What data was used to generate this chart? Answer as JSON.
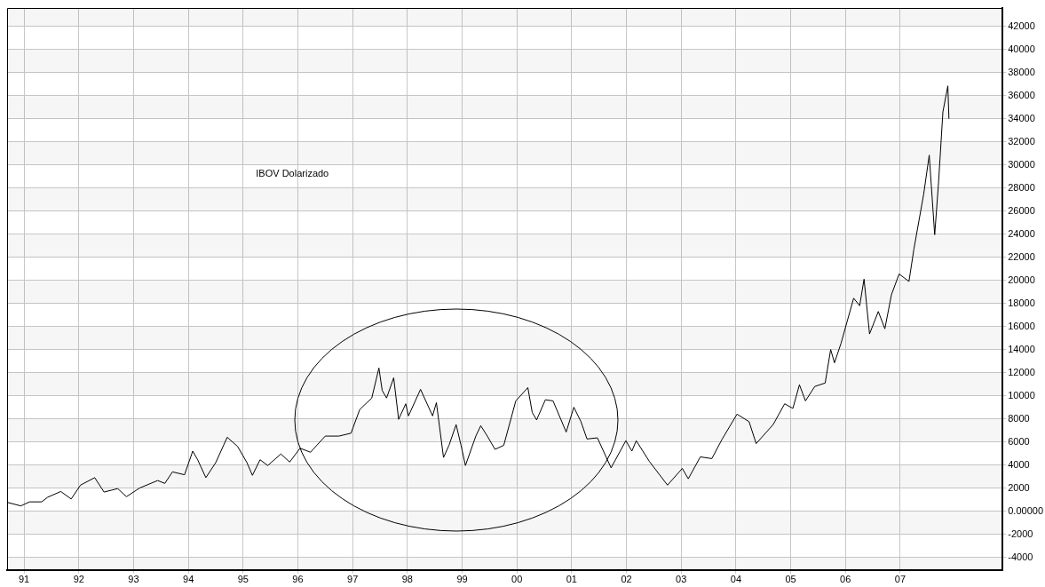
{
  "chart_data": {
    "type": "line",
    "title": "IBOV Dolarizado",
    "xlim": [
      1990.69,
      2008.87
    ],
    "xticks": [
      {
        "value": 1991,
        "label": "91"
      },
      {
        "value": 1992,
        "label": "92"
      },
      {
        "value": 1993,
        "label": "93"
      },
      {
        "value": 1994,
        "label": "94"
      },
      {
        "value": 1995,
        "label": "95"
      },
      {
        "value": 1996,
        "label": "96"
      },
      {
        "value": 1997,
        "label": "97"
      },
      {
        "value": 1998,
        "label": "98"
      },
      {
        "value": 1999,
        "label": "99"
      },
      {
        "value": 2000,
        "label": "00"
      },
      {
        "value": 2001,
        "label": "01"
      },
      {
        "value": 2002,
        "label": "02"
      },
      {
        "value": 2003,
        "label": "03"
      },
      {
        "value": 2004,
        "label": "04"
      },
      {
        "value": 2005,
        "label": "05"
      },
      {
        "value": 2006,
        "label": "06"
      },
      {
        "value": 2007,
        "label": "07"
      }
    ],
    "ylim": [
      -5100,
      43600
    ],
    "yticks": [
      -4000,
      -2000,
      {
        "value": 0,
        "label": "0.00000"
      },
      2000,
      4000,
      6000,
      8000,
      10000,
      12000,
      14000,
      16000,
      18000,
      20000,
      22000,
      24000,
      26000,
      28000,
      30000,
      32000,
      34000,
      36000,
      38000,
      40000,
      42000
    ],
    "grid": true,
    "legend": false,
    "marker": "none",
    "line_style": "solid",
    "series": [
      {
        "color": "#000000",
        "x": [
          1990.7,
          1990.94,
          1991.1,
          1991.32,
          1991.43,
          1991.67,
          1991.86,
          1992.03,
          1992.29,
          1992.46,
          1992.71,
          1992.87,
          1993.11,
          1993.44,
          1993.57,
          1993.71,
          1993.93,
          1994.08,
          1994.17,
          1994.32,
          1994.5,
          1994.71,
          1994.9,
          1995.07,
          1995.17,
          1995.31,
          1995.45,
          1995.69,
          1995.85,
          1996.04,
          1996.23,
          1996.5,
          1996.75,
          1996.97,
          1997.13,
          1997.35,
          1997.48,
          1997.54,
          1997.62,
          1997.75,
          1997.84,
          1997.97,
          1998.02,
          1998.24,
          1998.46,
          1998.53,
          1998.66,
          1998.76,
          1998.89,
          1998.98,
          1999.06,
          1999.25,
          1999.34,
          1999.46,
          1999.6,
          1999.76,
          1999.98,
          2000.2,
          2000.28,
          2000.36,
          2000.52,
          2000.66,
          2000.9,
          2001.04,
          2001.17,
          2001.28,
          2001.47,
          2001.72,
          2001.99,
          2002.1,
          2002.18,
          2002.42,
          2002.75,
          2003.02,
          2003.13,
          2003.35,
          2003.56,
          2003.75,
          2004.02,
          2004.24,
          2004.37,
          2004.68,
          2004.89,
          2005.04,
          2005.16,
          2005.27,
          2005.44,
          2005.63,
          2005.73,
          2005.8,
          2005.92,
          2006.15,
          2006.26,
          2006.34,
          2006.44,
          2006.6,
          2006.72,
          2006.84,
          2006.98,
          2007.16,
          2007.25,
          2007.43,
          2007.53,
          2007.63,
          2007.7,
          2007.78,
          2007.87,
          2007.89
        ],
        "values": [
          750,
          450,
          800,
          800,
          1200,
          1700,
          1050,
          2250,
          2900,
          1650,
          1950,
          1250,
          2000,
          2650,
          2400,
          3400,
          3150,
          5200,
          4450,
          2900,
          4200,
          6400,
          5600,
          4200,
          3100,
          4450,
          3950,
          4950,
          4250,
          5450,
          5100,
          6500,
          6500,
          6750,
          8800,
          9800,
          12400,
          10450,
          9800,
          11550,
          7950,
          9300,
          8250,
          10550,
          8250,
          9400,
          4650,
          5700,
          7500,
          5700,
          3950,
          6500,
          7400,
          6500,
          5350,
          5700,
          9550,
          10700,
          8550,
          7900,
          9650,
          9550,
          6850,
          9000,
          7750,
          6250,
          6350,
          3750,
          6100,
          5200,
          6100,
          4300,
          2250,
          3700,
          2800,
          4700,
          4550,
          6250,
          8400,
          7750,
          5850,
          7500,
          9300,
          8900,
          10950,
          9550,
          10800,
          11100,
          14000,
          12850,
          14550,
          18450,
          17800,
          20100,
          15350,
          17300,
          15800,
          18750,
          20550,
          19900,
          22700,
          27500,
          30850,
          23950,
          28450,
          34600,
          36850,
          34000
        ]
      }
    ]
  }
}
